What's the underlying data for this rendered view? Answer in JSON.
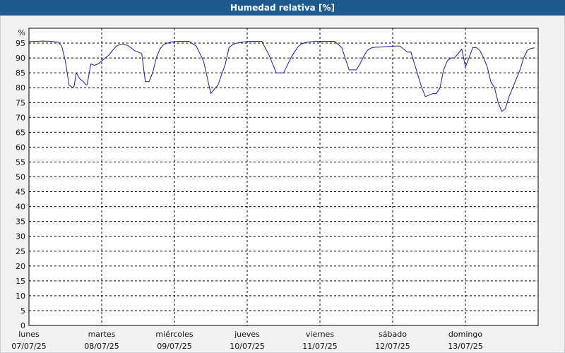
{
  "header": {
    "title": "Humedad relativa [%]"
  },
  "chart_data": {
    "type": "line",
    "title": "Humedad relativa [%]",
    "ylabel": "%",
    "xlabel": "",
    "ylim": [
      0,
      100
    ],
    "yticks": [
      0,
      5,
      10,
      15,
      20,
      25,
      30,
      35,
      40,
      45,
      50,
      55,
      60,
      65,
      70,
      75,
      80,
      85,
      90,
      95
    ],
    "xlim": [
      0,
      7
    ],
    "days": [
      {
        "day": "lunes",
        "date": "07/07/25"
      },
      {
        "day": "martes",
        "date": "08/07/25"
      },
      {
        "day": "miércoles",
        "date": "09/07/25"
      },
      {
        "day": "jueves",
        "date": "10/07/25"
      },
      {
        "day": "viernes",
        "date": "11/07/25"
      },
      {
        "day": "sábado",
        "date": "12/07/25"
      },
      {
        "day": "domingo",
        "date": "13/07/25"
      }
    ],
    "grid": true,
    "series": [
      {
        "color": "#1a1a9c",
        "x": [
          0,
          0.1,
          0.2,
          0.3,
          0.4,
          0.45,
          0.5,
          0.55,
          0.6,
          0.62,
          0.65,
          0.7,
          0.75,
          0.78,
          0.8,
          0.85,
          0.9,
          0.95,
          1.0,
          1.05,
          1.1,
          1.15,
          1.2,
          1.25,
          1.3,
          1.35,
          1.4,
          1.45,
          1.5,
          1.55,
          1.6,
          1.65,
          1.7,
          1.75,
          1.8,
          1.85,
          1.9,
          1.95,
          2.0,
          2.05,
          2.1,
          2.2,
          2.3,
          2.4,
          2.5,
          2.6,
          2.7,
          2.75,
          2.8,
          2.85,
          2.9,
          2.95,
          3.0,
          3.05,
          3.1,
          3.2,
          3.3,
          3.4,
          3.5,
          3.6,
          3.65,
          3.7,
          3.75,
          3.8,
          3.85,
          3.9,
          3.95,
          4.0,
          4.1,
          4.2,
          4.3,
          4.4,
          4.5,
          4.55,
          4.6,
          4.65,
          4.7,
          4.75,
          4.8,
          4.9,
          5.0,
          5.1,
          5.2,
          5.25,
          5.3,
          5.35,
          5.4,
          5.45,
          5.5,
          5.55,
          5.6,
          5.65,
          5.7,
          5.75,
          5.8,
          5.85,
          5.9,
          5.95,
          6.0,
          6.05,
          6.1,
          6.15,
          6.2,
          6.25,
          6.3,
          6.35,
          6.4,
          6.45,
          6.5,
          6.55,
          6.6,
          6.65,
          6.7,
          6.75,
          6.8,
          6.85,
          6.9,
          6.95
        ],
        "values": [
          95.5,
          95.6,
          95.7,
          95.6,
          95.3,
          94,
          89,
          81,
          80,
          80.5,
          85,
          83,
          82,
          81,
          81,
          88,
          87.5,
          88,
          89,
          90,
          91,
          92.5,
          94,
          94.5,
          94.5,
          94.3,
          93.5,
          92.5,
          92,
          91.5,
          82,
          82,
          85,
          90,
          93,
          94.5,
          95,
          95.3,
          95.5,
          95.6,
          95.6,
          95.6,
          94,
          89,
          78,
          81,
          88,
          93.5,
          94.5,
          95,
          95.2,
          95.4,
          95.5,
          95.6,
          95.6,
          95.6,
          91,
          85,
          85,
          90,
          92,
          93.8,
          94.8,
          95.2,
          95.4,
          95.5,
          95.6,
          95.6,
          95.6,
          95.6,
          93.5,
          86,
          86,
          88,
          90.5,
          92.5,
          93.3,
          93.6,
          93.6,
          93.8,
          94,
          94,
          92,
          92,
          88,
          84,
          80,
          77,
          77.5,
          78,
          78,
          80,
          86,
          89,
          90,
          90,
          91.5,
          93,
          87,
          90,
          93.5,
          93.5,
          92.5,
          90,
          87,
          82,
          80,
          75,
          72,
          73,
          77,
          80,
          83,
          86,
          90,
          92.5,
          93.2,
          93.4
        ]
      }
    ]
  }
}
